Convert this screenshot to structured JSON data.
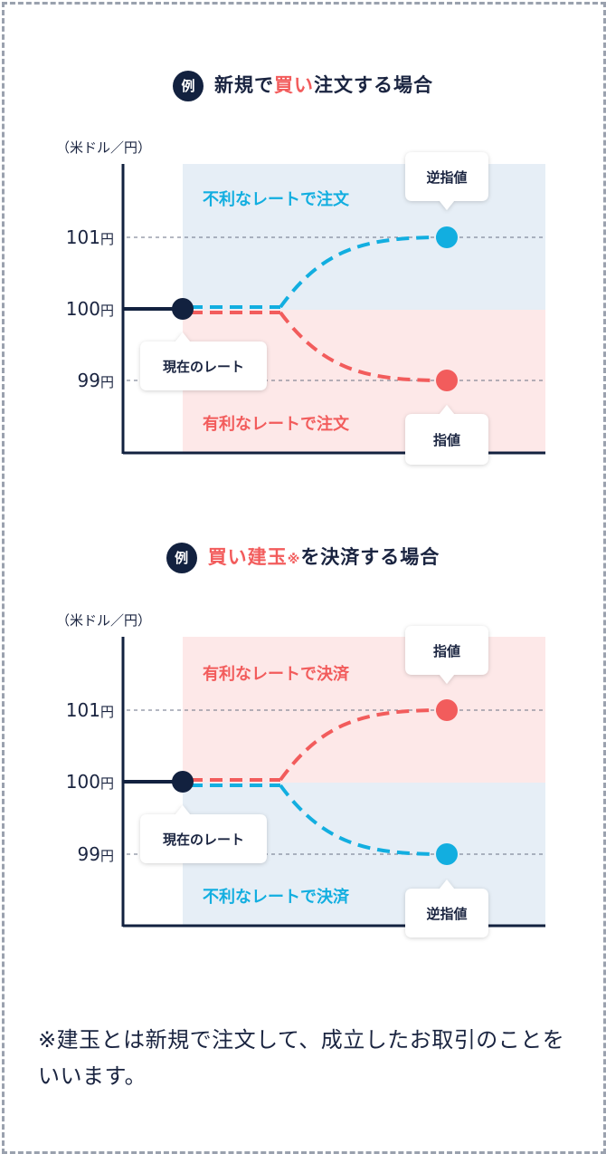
{
  "colors": {
    "navy": "#12213f",
    "blue": "#12aee0",
    "red": "#f25c5c",
    "blue_zone": "#e6eef6",
    "red_zone": "#fde8e8"
  },
  "diagram1": {
    "badge": "例",
    "heading_pre": "新規で",
    "heading_accent": "買い",
    "heading_post": "注文する場合",
    "unit": "（米ドル／円）",
    "ticks": [
      {
        "num": "101",
        "unit": "円"
      },
      {
        "num": "100",
        "unit": "円"
      },
      {
        "num": "99",
        "unit": "円"
      }
    ],
    "upper_zone_text": "不利なレートで注文",
    "lower_zone_text": "有利なレートで注文",
    "upper_callout": "逆指値",
    "lower_callout": "指値",
    "current_callout": "現在のレート"
  },
  "diagram2": {
    "badge": "例",
    "heading_accent": "買い建玉",
    "heading_mark": "※",
    "heading_post": "を決済する場合",
    "unit": "（米ドル／円）",
    "ticks": [
      {
        "num": "101",
        "unit": "円"
      },
      {
        "num": "100",
        "unit": "円"
      },
      {
        "num": "99",
        "unit": "円"
      }
    ],
    "upper_zone_text": "有利なレートで決済",
    "lower_zone_text": "不利なレートで決済",
    "upper_callout": "指値",
    "lower_callout": "逆指値",
    "current_callout": "現在のレート"
  },
  "footnote": "※建玉とは新規で注文して、成立したお取引のことをいいます。"
}
